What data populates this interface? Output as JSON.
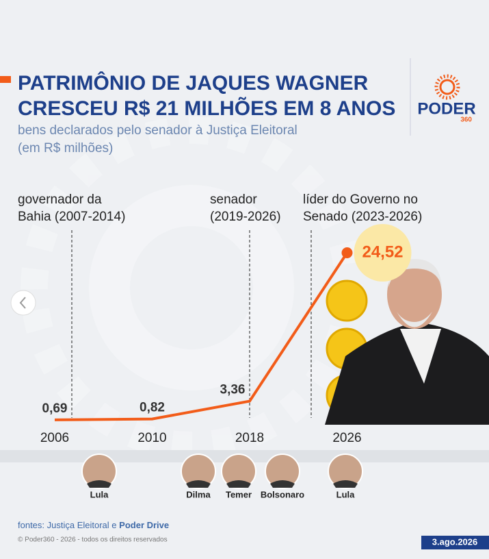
{
  "header": {
    "title_lines": [
      "PATRIMÔNIO DE JAQUES WAGNER",
      "CRESCEU R$ 21 MILHÕES EM 8 ANOS"
    ],
    "subtitle_lines": [
      "bens declarados pelo senador à Justiça Eleitoral",
      "(em R$ milhões)"
    ],
    "logo": "PODER",
    "logo_sub": "360"
  },
  "chart_data": {
    "type": "line",
    "categories": [
      "2006",
      "2010",
      "2018",
      "2026"
    ],
    "values": [
      0.69,
      0.82,
      3.36,
      24.52
    ],
    "value_labels": [
      "0,69",
      "0,82",
      "3,36",
      "24,52"
    ],
    "color": "#f25c19",
    "annotations": [
      {
        "lines": [
          "governador da",
          "Bahia (2007-2014)"
        ]
      },
      {
        "lines": [
          "senador",
          "(2019-2026)"
        ]
      },
      {
        "lines": [
          "líder do Governo no",
          "Senado (2023-2026)"
        ]
      }
    ]
  },
  "presidents": [
    "Lula",
    "Dilma",
    "Temer",
    "Bolsonaro",
    "Lula"
  ],
  "footer": {
    "source_prefix": "fontes: Justiça Eleitoral e",
    "source_bold": "Poder Drive",
    "copyright": "© Poder360 - 2026 - todos os direitos reservados",
    "date": "3.ago.2026"
  }
}
